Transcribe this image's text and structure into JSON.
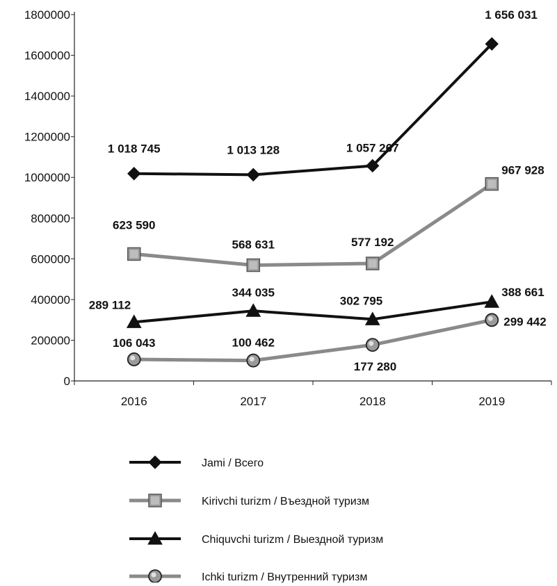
{
  "chart_data": {
    "type": "line",
    "categories": [
      "2016",
      "2017",
      "2018",
      "2019"
    ],
    "ylim": [
      0,
      1800000
    ],
    "yticks": [
      "0",
      "200000",
      "400000",
      "600000",
      "800000",
      "1000000",
      "1200000",
      "1400000",
      "1600000",
      "1800000"
    ],
    "legend_position": "bottom",
    "grid": false,
    "series": [
      {
        "name": "Jami / Всего",
        "values": [
          1018745,
          1013128,
          1057267,
          1656031
        ],
        "labels": [
          "1 018 745",
          "1 013 128",
          "1 057 267",
          "1 656 031"
        ],
        "color": "#111111",
        "marker": "diamond"
      },
      {
        "name": "Kirivchi turizm / Въездной туризм",
        "values": [
          623590,
          568631,
          577192,
          967928
        ],
        "labels": [
          "623 590",
          "568 631",
          "577 192",
          "967 928"
        ],
        "color": "#8a8a8a",
        "marker": "square"
      },
      {
        "name": "Chiquvchi turizm / Выездной туризм",
        "values": [
          289112,
          344035,
          302795,
          388661
        ],
        "labels": [
          "289 112",
          "344 035",
          "302 795",
          "388 661"
        ],
        "color": "#111111",
        "marker": "triangle"
      },
      {
        "name": "Ichki turizm / Внутренний туризм",
        "values": [
          106043,
          100462,
          177280,
          299442
        ],
        "labels": [
          "106 043",
          "100 462",
          "177 280",
          "299 442"
        ],
        "color": "#8a8a8a",
        "marker": "circle"
      }
    ]
  }
}
